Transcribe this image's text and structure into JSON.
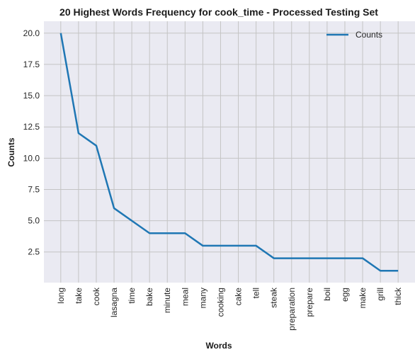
{
  "chart_data": {
    "type": "line",
    "title": "20 Highest Words Frequency for cook_time - Processed Testing Set",
    "xlabel": "Words",
    "ylabel": "Counts",
    "categories": [
      "long",
      "take",
      "cook",
      "lasagna",
      "time",
      "bake",
      "minute",
      "meal",
      "many",
      "cooking",
      "cake",
      "tell",
      "steak",
      "preparation",
      "prepare",
      "boil",
      "egg",
      "make",
      "grill",
      "thick"
    ],
    "series": [
      {
        "name": "Counts",
        "values": [
          20,
          12,
          11,
          6,
          5,
          4,
          4,
          4,
          3,
          3,
          3,
          3,
          2,
          2,
          2,
          2,
          2,
          2,
          1,
          1
        ]
      }
    ],
    "ylim": [
      0.05,
      20.95
    ],
    "yticks": [
      "2.5",
      "5.0",
      "7.5",
      "10.0",
      "12.5",
      "15.0",
      "17.5",
      "20.0"
    ],
    "grid": true,
    "legend_position": "top-right",
    "colors": {
      "line": "#1f77b4",
      "plot_bg": "#eaeaf2",
      "grid": "#c4c4c4"
    }
  }
}
